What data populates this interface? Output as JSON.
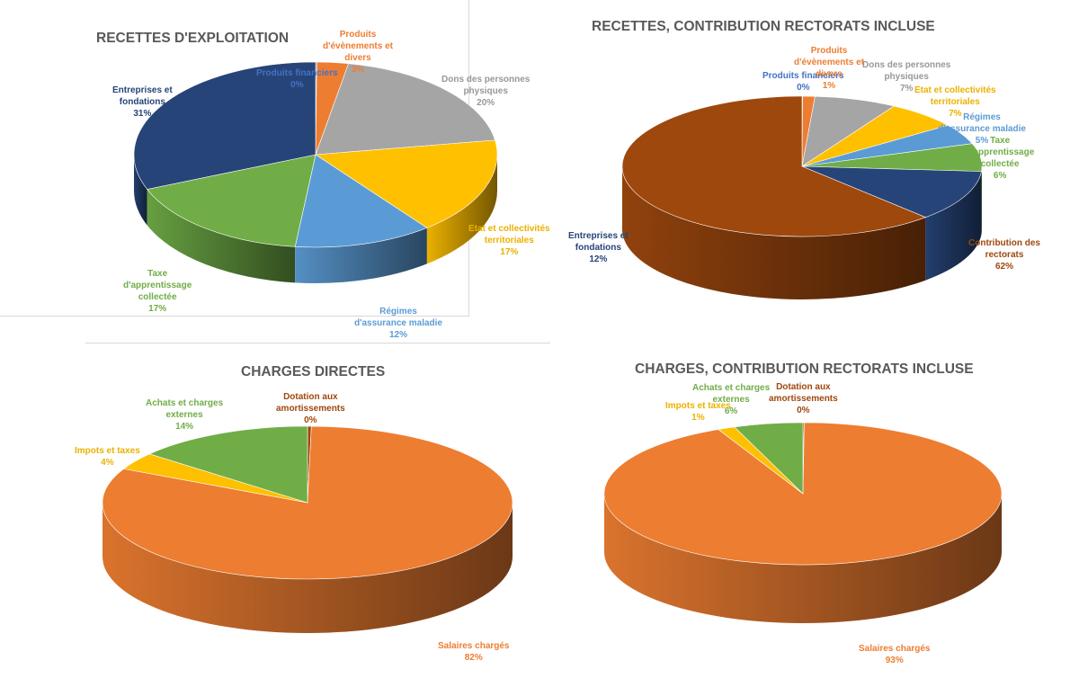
{
  "chart_data": [
    {
      "id": "c1",
      "type": "pie",
      "title": "RECETTES D'EXPLOITATION",
      "slices": [
        {
          "label": [
            "Produits financiers"
          ],
          "pct": "0%",
          "value": 0.1,
          "color": "#4472c4"
        },
        {
          "label": [
            "Produits",
            "d'évènements et",
            "divers"
          ],
          "pct": "3%",
          "value": 2.8,
          "color": "#ed7d31"
        },
        {
          "label": [
            "Dons des personnes",
            "physiques"
          ],
          "pct": "20%",
          "value": 19.6,
          "color": "#a5a5a5"
        },
        {
          "label": [
            "Etat et collectivités",
            "territoriales"
          ],
          "pct": "17%",
          "value": 17.0,
          "color": "#ffc000"
        },
        {
          "label": [
            "Régimes",
            "d'assurance maladie"
          ],
          "pct": "12%",
          "value": 12.3,
          "color": "#5b9bd5"
        },
        {
          "label": [
            "Taxe",
            "d'apprentissage",
            "collectée"
          ],
          "pct": "17%",
          "value": 17.1,
          "color": "#70ad47"
        },
        {
          "label": [
            "Entreprises et",
            "fondations"
          ],
          "pct": "31%",
          "value": 31.1,
          "color": "#264478"
        }
      ]
    },
    {
      "id": "c2",
      "type": "pie",
      "title": "RECETTES, CONTRIBUTION RECTORATS INCLUSE",
      "slices": [
        {
          "label": [
            "Produits financiers"
          ],
          "pct": "0%",
          "value": 0.05,
          "color": "#4472c4"
        },
        {
          "label": [
            "Produits",
            "d'évènements et",
            "divers"
          ],
          "pct": "1%",
          "value": 1.1,
          "color": "#ed7d31"
        },
        {
          "label": [
            "Dons des personnes",
            "physiques"
          ],
          "pct": "7%",
          "value": 7.4,
          "color": "#a5a5a5"
        },
        {
          "label": [
            "Etat et collectivités",
            "territoriales"
          ],
          "pct": "7%",
          "value": 6.5,
          "color": "#ffc000"
        },
        {
          "label": [
            "Régimes",
            "d'assurance maladie"
          ],
          "pct": "5%",
          "value": 4.7,
          "color": "#5b9bd5"
        },
        {
          "label": [
            "Taxe",
            "d'apprentissage",
            "collectée"
          ],
          "pct": "6%",
          "value": 6.4,
          "color": "#70ad47"
        },
        {
          "label": [
            "Entreprises et",
            "fondations"
          ],
          "pct": "12%",
          "value": 11.8,
          "color": "#264478"
        },
        {
          "label": [
            "Contribution des",
            "rectorats"
          ],
          "pct": "62%",
          "value": 62.05,
          "color": "#9e480e"
        }
      ]
    },
    {
      "id": "c3",
      "type": "pie",
      "title": "CHARGES DIRECTES",
      "slices": [
        {
          "label": [
            "Dotation aux",
            "amortissements"
          ],
          "pct": "0%",
          "value": 0.3,
          "color": "#9e480e"
        },
        {
          "label": [
            "Salaires chargés"
          ],
          "pct": "82%",
          "value": 82.0,
          "color": "#ed7d31"
        },
        {
          "label": [
            "Impots et taxes"
          ],
          "pct": "4%",
          "value": 3.7,
          "color": "#ffc000"
        },
        {
          "label": [
            "Achats et charges",
            "externes"
          ],
          "pct": "14%",
          "value": 14.0,
          "color": "#70ad47"
        }
      ]
    },
    {
      "id": "c4",
      "type": "pie",
      "title": "CHARGES, CONTRIBUTION RECTORATS INCLUSE",
      "slices": [
        {
          "label": [
            "Dotation aux",
            "amortissements"
          ],
          "pct": "0%",
          "value": 0.1,
          "color": "#9e480e"
        },
        {
          "label": [
            "Salaires chargés"
          ],
          "pct": "93%",
          "value": 92.9,
          "color": "#ed7d31"
        },
        {
          "label": [
            "Impots et taxes"
          ],
          "pct": "1%",
          "value": 1.4,
          "color": "#ffc000"
        },
        {
          "label": [
            "Achats et charges",
            "externes"
          ],
          "pct": "6%",
          "value": 5.6,
          "color": "#70ad47"
        }
      ]
    }
  ]
}
